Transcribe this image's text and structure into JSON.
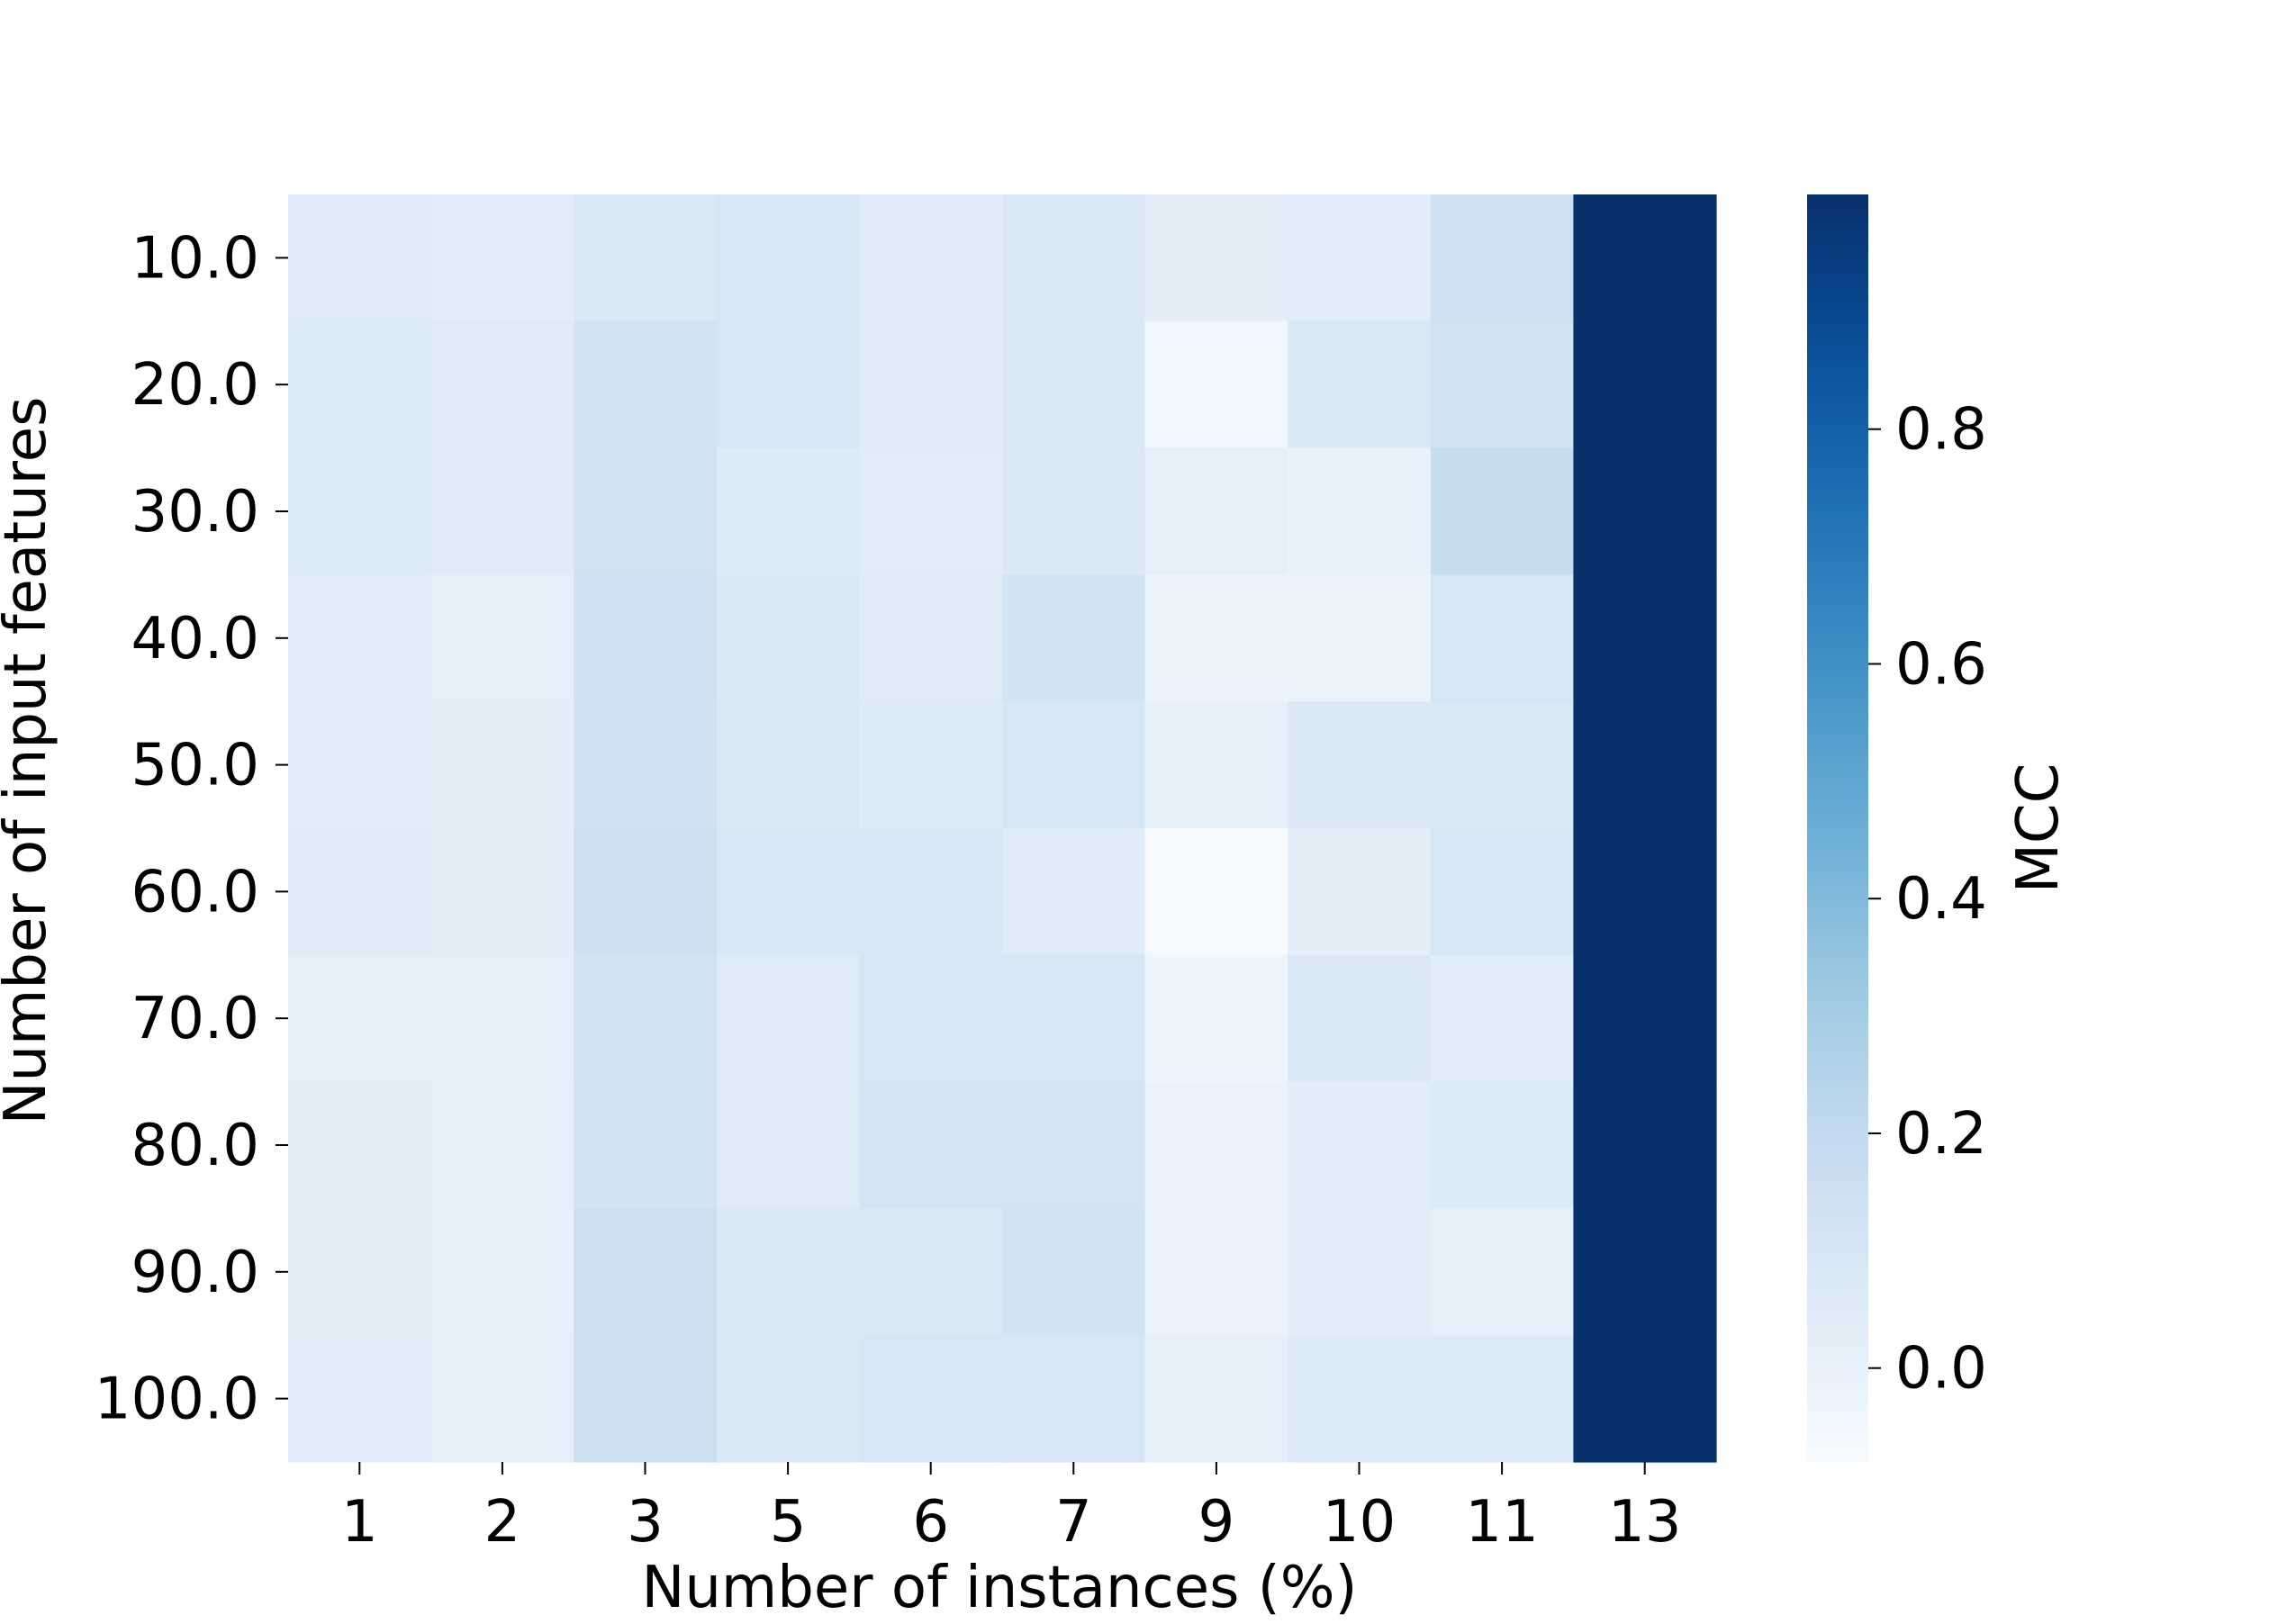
{
  "chart_data": {
    "type": "heatmap",
    "xlabel": "Number of instances (%)",
    "ylabel": "Number of input features",
    "x_categories": [
      "1",
      "2",
      "3",
      "5",
      "6",
      "7",
      "9",
      "10",
      "11",
      "13"
    ],
    "y_categories": [
      "10.0",
      "20.0",
      "30.0",
      "40.0",
      "50.0",
      "60.0",
      "70.0",
      "80.0",
      "90.0",
      "100.0"
    ],
    "values": [
      [
        0.05,
        0.04,
        0.08,
        0.1,
        0.05,
        0.08,
        0.03,
        0.04,
        0.14,
        1.0
      ],
      [
        0.06,
        0.05,
        0.13,
        0.1,
        0.05,
        0.08,
        -0.04,
        0.08,
        0.13,
        1.0
      ],
      [
        0.06,
        0.05,
        0.13,
        0.06,
        0.04,
        0.07,
        0.02,
        0.0,
        0.18,
        1.0
      ],
      [
        0.04,
        0.02,
        0.14,
        0.07,
        0.05,
        0.12,
        -0.02,
        -0.02,
        0.1,
        1.0
      ],
      [
        0.04,
        0.03,
        0.14,
        0.08,
        0.06,
        0.09,
        0.01,
        0.07,
        0.07,
        1.0
      ],
      [
        0.05,
        0.03,
        0.15,
        0.09,
        0.09,
        0.05,
        -0.07,
        0.03,
        0.1,
        1.0
      ],
      [
        0.02,
        0.02,
        0.13,
        0.05,
        0.1,
        0.1,
        -0.03,
        0.08,
        0.04,
        1.0
      ],
      [
        0.03,
        0.02,
        0.12,
        0.05,
        0.11,
        0.11,
        -0.01,
        0.04,
        0.06,
        1.0
      ],
      [
        0.03,
        0.01,
        0.16,
        0.07,
        0.07,
        0.12,
        -0.01,
        0.04,
        0.01,
        1.0
      ],
      [
        0.04,
        0.02,
        0.16,
        0.07,
        0.09,
        0.1,
        0.02,
        0.06,
        0.06,
        1.0
      ]
    ],
    "colorbar": {
      "label": "MCC",
      "colormap": "Blues",
      "vmin": -0.08,
      "vmax": 1.0,
      "ticks": [
        "0.0",
        "0.2",
        "0.4",
        "0.6",
        "0.8"
      ],
      "tick_values": [
        0.0,
        0.2,
        0.4,
        0.6,
        0.8
      ]
    },
    "grid": false
  }
}
